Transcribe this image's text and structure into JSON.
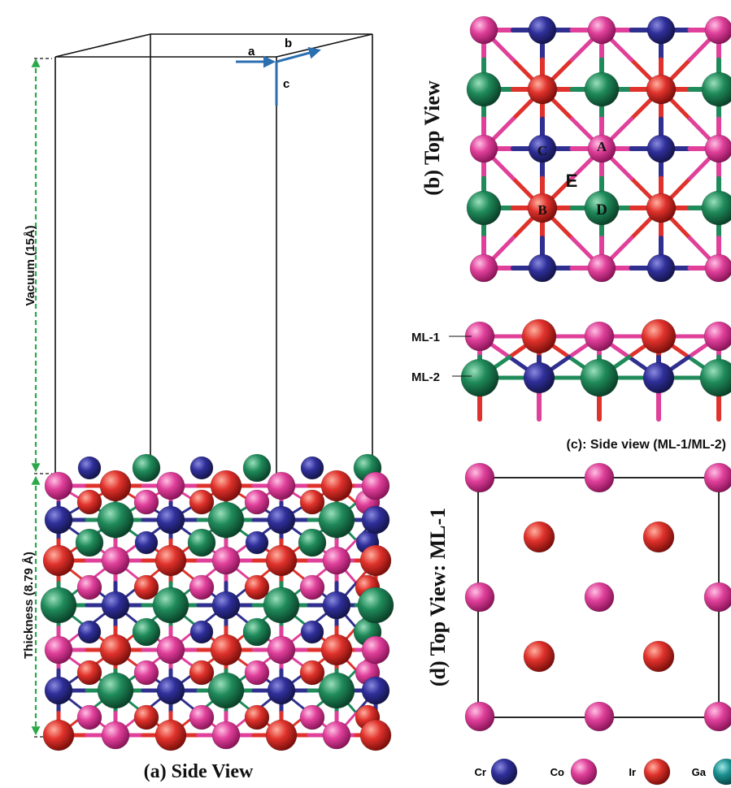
{
  "colors": {
    "Cr": "#2f2f8f",
    "Co": "#e0409a",
    "Ir": "#e0322c",
    "Ga": "#1f8a5a",
    "Ga_legend": "#1a8f8f",
    "axis_arrow": "#2a6fb0",
    "dimension_line": "#2aa84a",
    "cell_line": "#111111"
  },
  "panel_a": {
    "caption": "(a) Side View",
    "vacuum_label": "Vacuum (15Å)",
    "thickness_label": "Thickness (8.79 Å)",
    "axes": {
      "a": "a",
      "b": "b",
      "c": "c"
    }
  },
  "panel_b": {
    "caption": "(b) Top View",
    "site_labels": {
      "A": "A",
      "B": "B",
      "C": "C",
      "D": "D",
      "E": "E"
    }
  },
  "panel_c": {
    "caption": "(c): Side view (ML-1/ML-2)",
    "ml1": "ML-1",
    "ml2": "ML-2"
  },
  "panel_d": {
    "caption": "(d) Top View: ML-1"
  },
  "legend": [
    {
      "label": "Cr",
      "color_key": "Cr"
    },
    {
      "label": "Co",
      "color_key": "Co"
    },
    {
      "label": "Ir",
      "color_key": "Ir"
    },
    {
      "label": "Ga",
      "color_key": "Ga_legend"
    }
  ]
}
